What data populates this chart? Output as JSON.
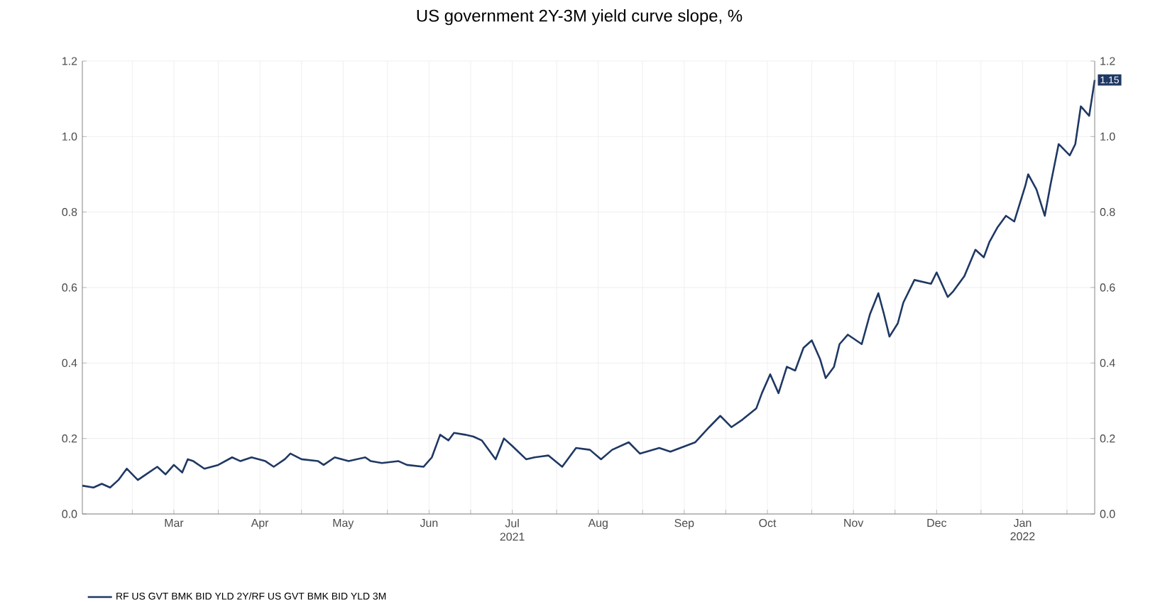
{
  "chart_data": {
    "type": "line",
    "title": "US government 2Y-3M yield curve slope, %",
    "series": [
      {
        "name": "RF US GVT BMK BID YLD 2Y/RF US GVT BMK BID YLD 3M",
        "color": "#1f3864",
        "x": [
          "2021-02-11",
          "2021-02-15",
          "2021-02-18",
          "2021-02-21",
          "2021-02-24",
          "2021-02-27",
          "2021-03-03",
          "2021-03-06",
          "2021-03-10",
          "2021-03-13",
          "2021-03-16",
          "2021-03-19",
          "2021-03-21",
          "2021-03-23",
          "2021-03-27",
          "2021-04-01",
          "2021-04-06",
          "2021-04-09",
          "2021-04-13",
          "2021-04-18",
          "2021-04-21",
          "2021-04-25",
          "2021-04-27",
          "2021-05-01",
          "2021-05-07",
          "2021-05-09",
          "2021-05-13",
          "2021-05-18",
          "2021-05-24",
          "2021-05-26",
          "2021-05-30",
          "2021-06-05",
          "2021-06-08",
          "2021-06-14",
          "2021-06-17",
          "2021-06-20",
          "2021-06-23",
          "2021-06-25",
          "2021-06-29",
          "2021-07-02",
          "2021-07-05",
          "2021-07-10",
          "2021-07-13",
          "2021-07-16",
          "2021-07-21",
          "2021-07-24",
          "2021-07-29",
          "2021-08-03",
          "2021-08-08",
          "2021-08-13",
          "2021-08-17",
          "2021-08-21",
          "2021-08-27",
          "2021-08-31",
          "2021-09-07",
          "2021-09-11",
          "2021-09-20",
          "2021-09-25",
          "2021-09-29",
          "2021-10-03",
          "2021-10-07",
          "2021-10-12",
          "2021-10-14",
          "2021-10-17",
          "2021-10-20",
          "2021-10-23",
          "2021-10-26",
          "2021-10-29",
          "2021-11-01",
          "2021-11-04",
          "2021-11-06",
          "2021-11-09",
          "2021-11-11",
          "2021-11-14",
          "2021-11-19",
          "2021-11-22",
          "2021-11-25",
          "2021-11-27",
          "2021-11-29",
          "2021-12-02",
          "2021-12-04",
          "2021-12-08",
          "2021-12-14",
          "2021-12-16",
          "2021-12-20",
          "2021-12-22",
          "2021-12-26",
          "2021-12-30",
          "2022-01-02",
          "2022-01-04",
          "2022-01-07",
          "2022-01-10",
          "2022-01-13",
          "2022-01-17",
          "2022-01-18",
          "2022-01-21",
          "2022-01-24",
          "2022-01-26",
          "2022-01-29",
          "2022-02-02",
          "2022-02-04",
          "2022-02-06",
          "2022-02-09",
          "2022-02-11"
        ],
        "values": [
          0.075,
          0.07,
          0.08,
          0.07,
          0.09,
          0.12,
          0.09,
          0.105,
          0.125,
          0.105,
          0.13,
          0.11,
          0.145,
          0.14,
          0.12,
          0.13,
          0.15,
          0.14,
          0.15,
          0.14,
          0.125,
          0.145,
          0.16,
          0.145,
          0.14,
          0.13,
          0.15,
          0.14,
          0.15,
          0.14,
          0.135,
          0.14,
          0.13,
          0.125,
          0.15,
          0.21,
          0.195,
          0.215,
          0.21,
          0.205,
          0.195,
          0.145,
          0.2,
          0.18,
          0.145,
          0.15,
          0.155,
          0.125,
          0.175,
          0.17,
          0.145,
          0.17,
          0.19,
          0.16,
          0.175,
          0.165,
          0.19,
          0.23,
          0.26,
          0.23,
          0.25,
          0.28,
          0.32,
          0.37,
          0.32,
          0.39,
          0.38,
          0.44,
          0.46,
          0.41,
          0.36,
          0.39,
          0.45,
          0.475,
          0.45,
          0.53,
          0.585,
          0.53,
          0.47,
          0.505,
          0.56,
          0.62,
          0.61,
          0.64,
          0.575,
          0.59,
          0.63,
          0.7,
          0.68,
          0.72,
          0.76,
          0.79,
          0.775,
          0.87,
          0.9,
          0.86,
          0.79,
          0.87,
          0.98,
          0.95,
          0.98,
          1.08,
          1.055,
          1.15
        ]
      }
    ],
    "xlim": [
      "2021-02-11",
      "2022-02-11"
    ],
    "xticks": [
      {
        "value": "2021-03-01",
        "label": null
      },
      {
        "value": "2021-03-16",
        "label": "Mar"
      },
      {
        "value": "2021-04-01",
        "label": null
      },
      {
        "value": "2021-04-16",
        "label": "Apr"
      },
      {
        "value": "2021-05-01",
        "label": null
      },
      {
        "value": "2021-05-16",
        "label": "May"
      },
      {
        "value": "2021-06-01",
        "label": null
      },
      {
        "value": "2021-06-16",
        "label": "Jun"
      },
      {
        "value": "2021-07-01",
        "label": null
      },
      {
        "value": "2021-07-16",
        "label": "Jul 2021"
      },
      {
        "value": "2021-08-01",
        "label": null
      },
      {
        "value": "2021-08-16",
        "label": "Aug"
      },
      {
        "value": "2021-09-01",
        "label": null
      },
      {
        "value": "2021-09-16",
        "label": "Sep"
      },
      {
        "value": "2021-10-01",
        "label": null
      },
      {
        "value": "2021-10-16",
        "label": "Oct"
      },
      {
        "value": "2021-11-01",
        "label": null
      },
      {
        "value": "2021-11-16",
        "label": "Nov"
      },
      {
        "value": "2021-12-01",
        "label": null
      },
      {
        "value": "2021-12-16",
        "label": "Dec"
      },
      {
        "value": "2022-01-01",
        "label": null
      },
      {
        "value": "2022-01-16",
        "label": "Jan 2022"
      },
      {
        "value": "2022-02-01",
        "label": null
      }
    ],
    "ylim": [
      0,
      1.2
    ],
    "yticks": [
      {
        "value": 0,
        "label": "0.0"
      },
      {
        "value": 0.2,
        "label": "0.2"
      },
      {
        "value": 0.4,
        "label": "0.4"
      },
      {
        "value": 0.6,
        "label": "0.6"
      },
      {
        "value": 0.8,
        "label": "0.8"
      },
      {
        "value": 1,
        "label": "1.0"
      },
      {
        "value": 1.2,
        "label": "1.2"
      }
    ],
    "y2lim": [
      0,
      1.2
    ],
    "y2ticks": [
      {
        "value": 0,
        "label": "0.0"
      },
      {
        "value": 0.2,
        "label": "0.2"
      },
      {
        "value": 0.4,
        "label": "0.4"
      },
      {
        "value": 0.6,
        "label": "0.6"
      },
      {
        "value": 0.8,
        "label": "0.8"
      },
      {
        "value": 1,
        "label": "1.0"
      },
      {
        "value": 1.2,
        "label": "1.2"
      }
    ],
    "annotations": [
      {
        "text": "1.15",
        "x": "2022-02-11",
        "y": 1.15
      }
    ],
    "grid": true,
    "legend": "bottom left",
    "marker": "none",
    "line_style": "solid"
  }
}
